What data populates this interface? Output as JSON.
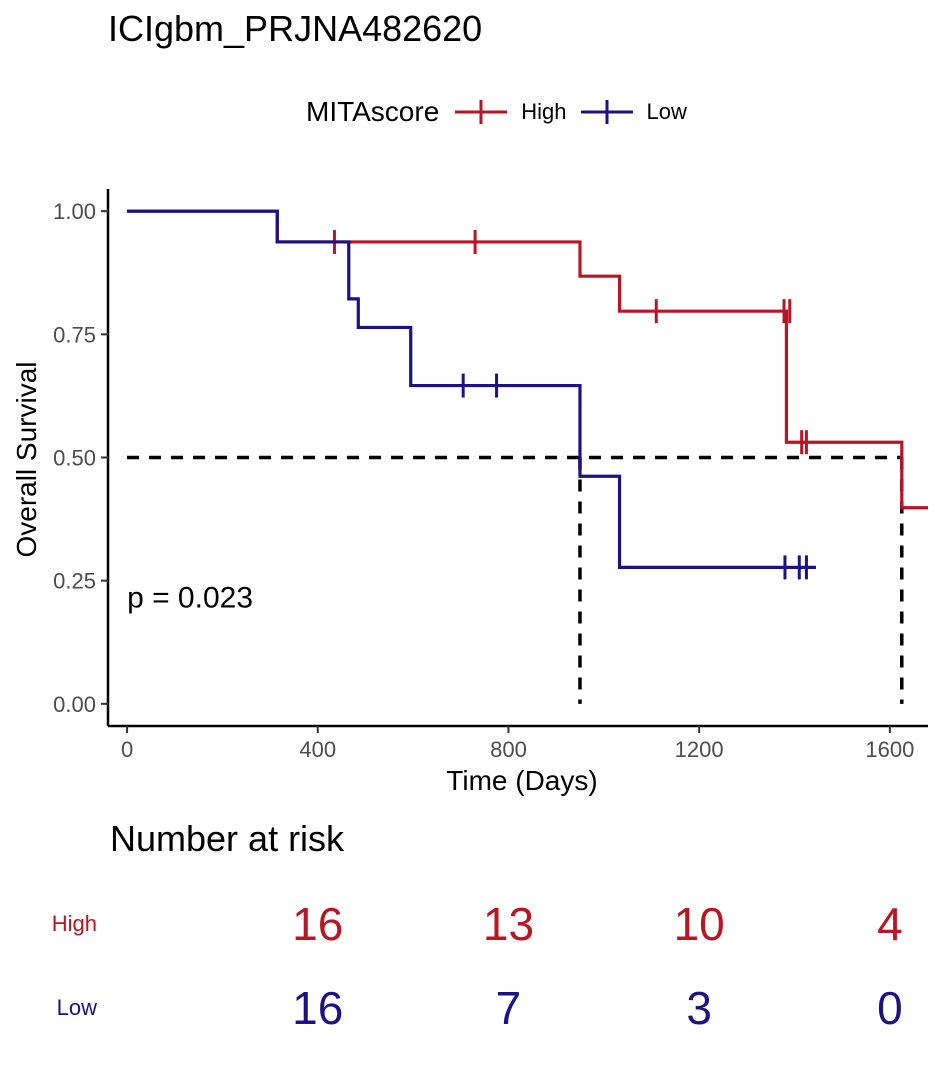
{
  "title": "ICIgbm_PRJNA482620",
  "legend": {
    "title": "MITAscore",
    "items": [
      {
        "label": "High",
        "color": "#B81525"
      },
      {
        "label": "Low",
        "color": "#1D1285"
      }
    ]
  },
  "chart_data": {
    "type": "line",
    "subtype": "kaplan-meier",
    "xlabel": "Time (Days)",
    "ylabel": "Overall Survival",
    "xlim": [
      -40,
      1680
    ],
    "ylim": [
      -0.045,
      1.045
    ],
    "x_ticks": [
      0,
      400,
      800,
      1200,
      1600
    ],
    "y_ticks": [
      0.0,
      0.25,
      0.5,
      0.75,
      1.0
    ],
    "y_tick_labels": [
      "0.00",
      "0.25",
      "0.50",
      "0.75",
      "1.00"
    ],
    "grid": false,
    "annotation": "p = 0.023",
    "annotation_pos": {
      "x": 0,
      "y": 0.2
    },
    "median_line": {
      "y": 0.5,
      "x_end": 1625,
      "drops": [
        950,
        1625
      ]
    },
    "series": [
      {
        "name": "High",
        "color": "#B81525",
        "steps": [
          [
            0,
            1.0
          ],
          [
            315,
            0.9375
          ],
          [
            950,
            0.868
          ],
          [
            1033,
            0.797
          ],
          [
            1383,
            0.531
          ],
          [
            1625,
            0.398
          ],
          [
            1680,
            0.398
          ]
        ],
        "censors": [
          [
            435,
            0.9375
          ],
          [
            730,
            0.9375
          ],
          [
            1110,
            0.797
          ],
          [
            1378,
            0.797
          ],
          [
            1390,
            0.797
          ],
          [
            1415,
            0.531
          ],
          [
            1425,
            0.531
          ]
        ]
      },
      {
        "name": "Low",
        "color": "#1D1285",
        "steps": [
          [
            0,
            1.0
          ],
          [
            315,
            0.9375
          ],
          [
            465,
            0.822
          ],
          [
            485,
            0.764
          ],
          [
            595,
            0.646
          ],
          [
            950,
            0.462
          ],
          [
            1033,
            0.277
          ],
          [
            1445,
            0.277
          ]
        ],
        "censors": [
          [
            705,
            0.646
          ],
          [
            775,
            0.646
          ],
          [
            1380,
            0.277
          ],
          [
            1410,
            0.277
          ],
          [
            1425,
            0.277
          ]
        ]
      }
    ]
  },
  "risk_table": {
    "title": "Number at risk",
    "times": [
      400,
      800,
      1200,
      1600
    ],
    "rows": [
      {
        "name": "High",
        "color": "#B81525",
        "counts": [
          "16",
          "13",
          "10",
          "4"
        ]
      },
      {
        "name": "Low",
        "color": "#1D1285",
        "counts": [
          "16",
          "7",
          "3",
          "0"
        ]
      }
    ]
  }
}
